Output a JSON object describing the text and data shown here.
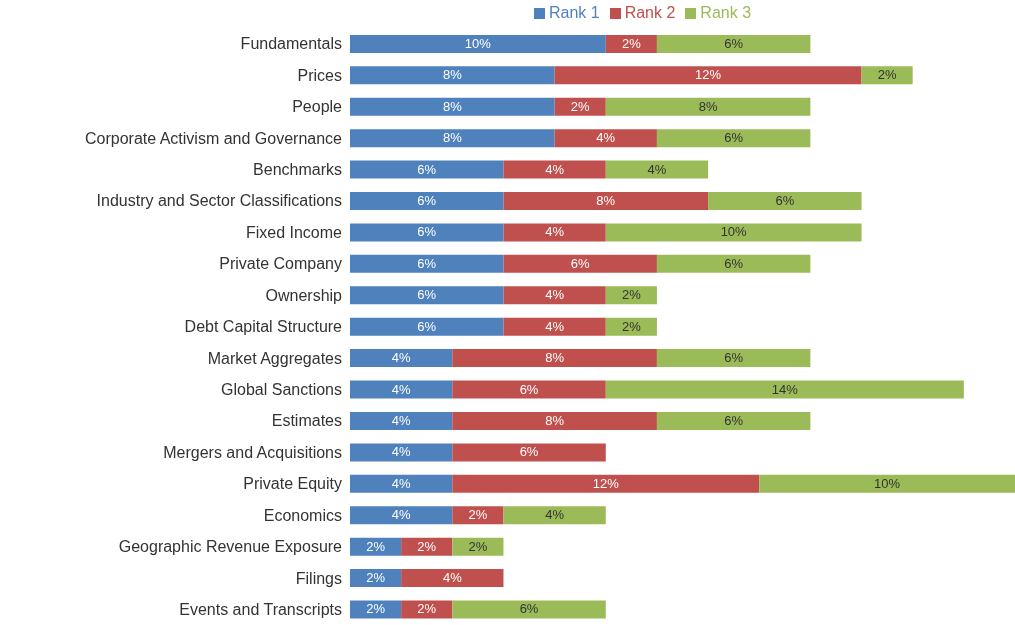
{
  "chart_data": {
    "type": "bar",
    "orientation": "horizontal",
    "stacked": true,
    "legend": "top",
    "xlim": [
      0,
      26
    ],
    "tick_labels": "y",
    "categories": [
      "Fundamentals",
      "Prices",
      "People",
      "Corporate Activism and Governance",
      "Benchmarks",
      "Industry and Sector Classifications",
      "Fixed Income",
      "Private Company",
      "Ownership",
      "Debt Capital Structure",
      "Market Aggregates",
      "Global Sanctions",
      "Estimates",
      "Mergers and Acquisitions",
      "Private Equity",
      "Economics",
      "Geographic Revenue Exposure",
      "Filings",
      "Events and Transcripts"
    ],
    "series": [
      {
        "name": "Rank 1",
        "color": "#4f81bd",
        "values": [
          10,
          8,
          8,
          8,
          6,
          6,
          6,
          6,
          6,
          6,
          4,
          4,
          4,
          4,
          4,
          4,
          2,
          2,
          2
        ],
        "value_labels": [
          "10%",
          "8%",
          "8%",
          "8%",
          "6%",
          "6%",
          "6%",
          "6%",
          "6%",
          "6%",
          "4%",
          "4%",
          "4%",
          "4%",
          "4%",
          "4%",
          "2%",
          "2%",
          "2%"
        ]
      },
      {
        "name": "Rank 2",
        "color": "#c0504d",
        "values": [
          2,
          12,
          2,
          4,
          4,
          8,
          4,
          6,
          4,
          4,
          8,
          6,
          8,
          6,
          12,
          2,
          2,
          4,
          2
        ],
        "value_labels": [
          "2%",
          "12%",
          "2%",
          "4%",
          "4%",
          "8%",
          "4%",
          "6%",
          "4%",
          "4%",
          "8%",
          "6%",
          "8%",
          "6%",
          "12%",
          "2%",
          "2%",
          "4%",
          "2%"
        ]
      },
      {
        "name": "Rank 3",
        "color": "#9bbb59",
        "values": [
          6,
          2,
          8,
          6,
          4,
          6,
          10,
          6,
          2,
          2,
          6,
          14,
          6,
          null,
          10,
          4,
          2,
          null,
          6
        ],
        "value_labels": [
          "6%",
          "2%",
          "8%",
          "6%",
          "4%",
          "6%",
          "10%",
          "6%",
          "2%",
          "2%",
          "6%",
          "14%",
          "6%",
          null,
          "10%",
          "4%",
          "2%",
          null,
          "6%"
        ]
      }
    ]
  }
}
